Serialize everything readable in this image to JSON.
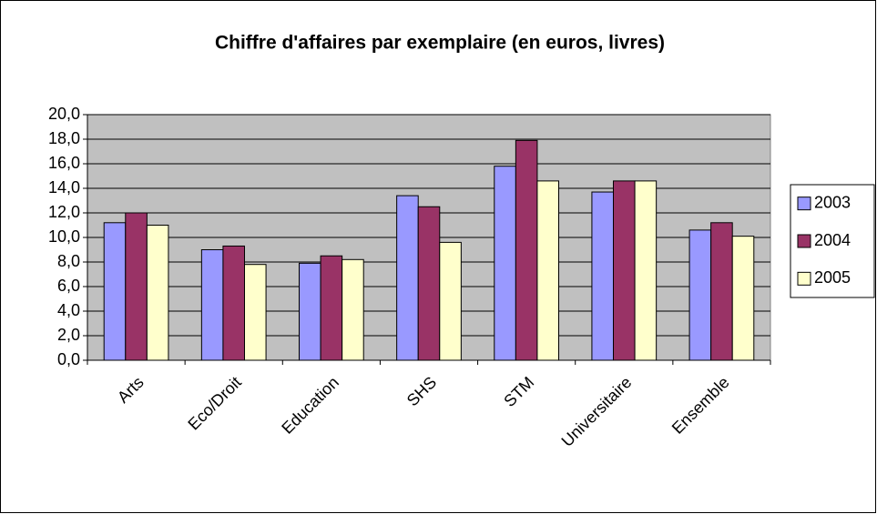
{
  "chart_data": {
    "type": "bar",
    "title": "Chiffre d'affaires par exemplaire (en euros, livres)",
    "categories": [
      "Arts",
      "Eco/Droit",
      "Education",
      "SHS",
      "STM",
      "Universitaire",
      "Ensemble"
    ],
    "series": [
      {
        "name": "2003",
        "color": "#9999ff",
        "values": [
          11.2,
          9.0,
          7.9,
          13.4,
          15.8,
          13.7,
          10.6
        ]
      },
      {
        "name": "2004",
        "color": "#993366",
        "values": [
          12.0,
          9.3,
          8.5,
          12.5,
          17.9,
          14.6,
          11.2
        ]
      },
      {
        "name": "2005",
        "color": "#ffffcc",
        "values": [
          11.0,
          7.8,
          8.2,
          9.6,
          14.6,
          14.6,
          10.1
        ]
      }
    ],
    "ylim": [
      0,
      20
    ],
    "yticks": [
      {
        "value": 0,
        "label": "0,0"
      },
      {
        "value": 2,
        "label": "2,0"
      },
      {
        "value": 4,
        "label": "4,0"
      },
      {
        "value": 6,
        "label": "6,0"
      },
      {
        "value": 8,
        "label": "8,0"
      },
      {
        "value": 10,
        "label": "10,0"
      },
      {
        "value": 12,
        "label": "12,0"
      },
      {
        "value": 14,
        "label": "14,0"
      },
      {
        "value": 16,
        "label": "16,0"
      },
      {
        "value": 18,
        "label": "18,0"
      },
      {
        "value": 20,
        "label": "20,0"
      }
    ],
    "grid": true,
    "legend": "right"
  }
}
